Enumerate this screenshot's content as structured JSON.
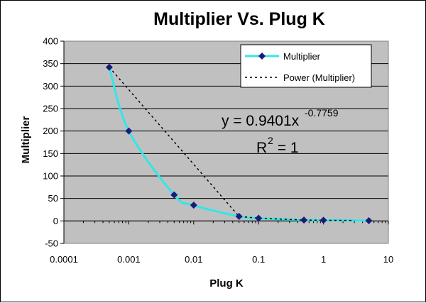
{
  "chart_data": {
    "type": "scatter",
    "title": "Multiplier Vs. Plug K",
    "xlabel": "Plug K",
    "ylabel": "Multiplier",
    "x_scale": "log",
    "xlim": [
      0.0001,
      10
    ],
    "ylim": [
      -50,
      400
    ],
    "x_ticks": [
      "0.0001",
      "0.001",
      "0.01",
      "0.1",
      "1",
      "10"
    ],
    "y_ticks": [
      "-50",
      "0",
      "50",
      "100",
      "150",
      "200",
      "250",
      "300",
      "350",
      "400"
    ],
    "grid": "horizontal",
    "legend_position": "top-right",
    "series": [
      {
        "name": "Multiplier",
        "style": "smooth line with diamond markers",
        "line_color": "#33E6E6",
        "marker_color": "#1A1A7A",
        "x": [
          0.0005,
          0.001,
          0.005,
          0.01,
          0.05,
          0.1,
          0.5,
          1,
          5
        ],
        "y": [
          342,
          200,
          58,
          35,
          10,
          6,
          2,
          1.5,
          0.5
        ]
      },
      {
        "name": "Power (Multiplier)",
        "style": "dotted trendline",
        "line_color": "#000000",
        "x": [
          0.0005,
          0.05,
          0.1,
          0.5,
          1,
          3
        ],
        "y": [
          342,
          10,
          6,
          2,
          1.5,
          1
        ]
      }
    ],
    "annotations": {
      "equation_base": "y = 0.9401x",
      "equation_exponent": "-0.7759",
      "r2_base": "R",
      "r2_exponent": "2",
      "r2_value": " = 1"
    },
    "plot_background": "#C0C0C0"
  }
}
